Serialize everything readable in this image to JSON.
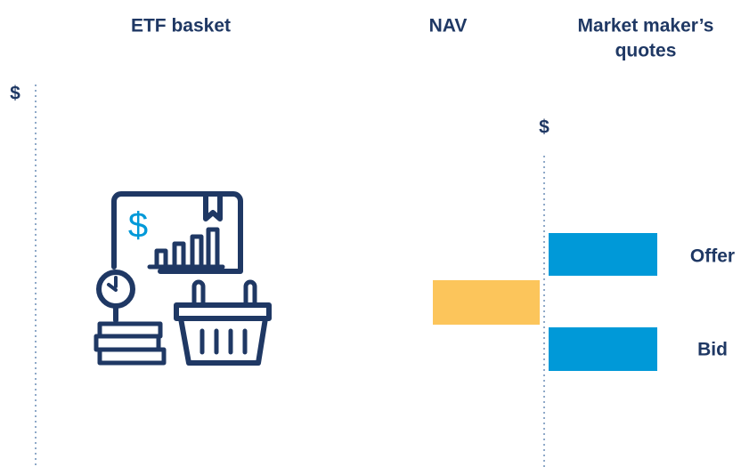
{
  "headers": {
    "etf_basket": "ETF basket",
    "nav": "NAV",
    "quotes": [
      "Market maker’s",
      "quotes"
    ]
  },
  "axis_symbols": [
    "$",
    "$"
  ],
  "quote_labels": {
    "offer": "Offer",
    "bid": "Bid"
  }
}
